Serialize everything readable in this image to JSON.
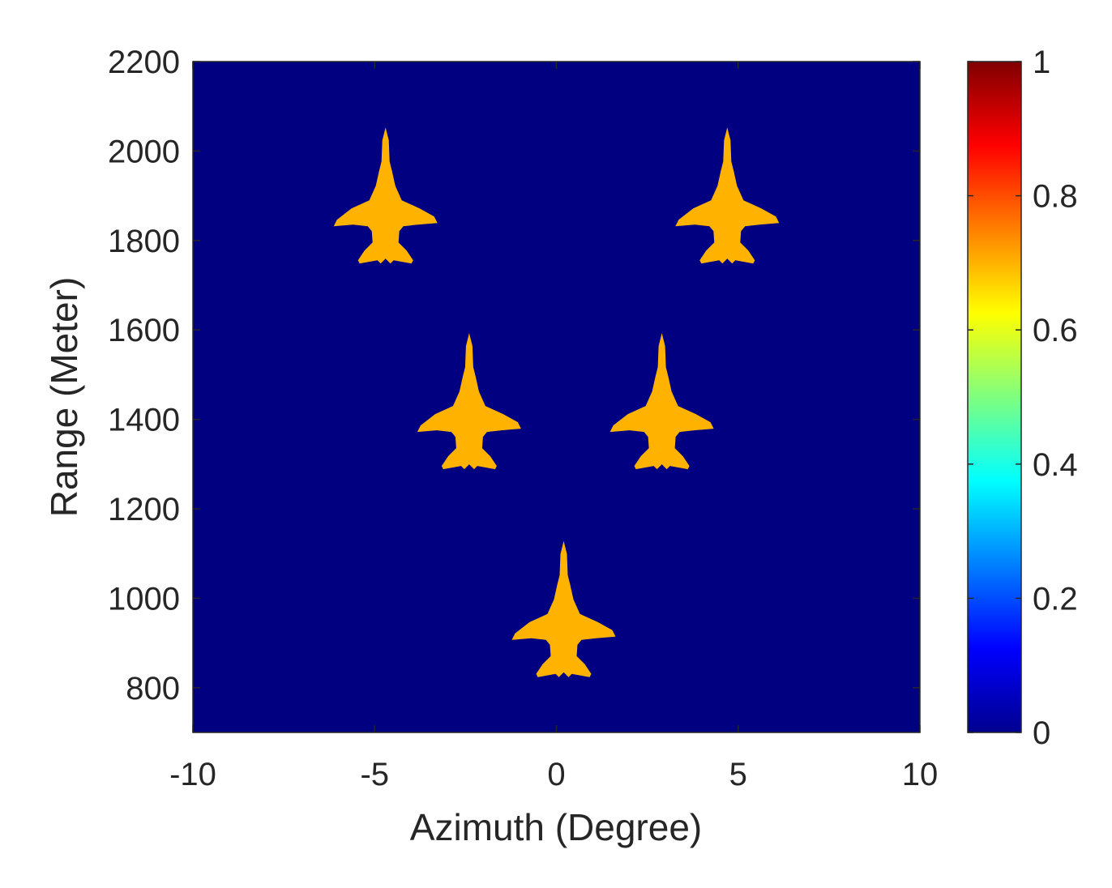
{
  "chart_data": {
    "type": "heatmap",
    "title": "",
    "xlabel": "Azimuth (Degree)",
    "ylabel": "Range (Meter)",
    "xlim": [
      -10,
      10
    ],
    "ylim": [
      700,
      2200
    ],
    "xticks": [
      -10,
      -5,
      0,
      5,
      10
    ],
    "xtick_labels": [
      "-10",
      "-5",
      "0",
      "5",
      "10"
    ],
    "yticks": [
      800,
      1000,
      1200,
      1400,
      1600,
      1800,
      2000,
      2200
    ],
    "ytick_labels": [
      "800",
      "1000",
      "1200",
      "1400",
      "1600",
      "1800",
      "2000",
      "2200"
    ],
    "background_value": 0,
    "targets": [
      {
        "azimuth": -4.7,
        "range": 1850,
        "intensity": 0.7
      },
      {
        "azimuth": 4.7,
        "range": 1850,
        "intensity": 0.7
      },
      {
        "azimuth": -2.4,
        "range": 1390,
        "intensity": 0.7
      },
      {
        "azimuth": 2.9,
        "range": 1390,
        "intensity": 0.7
      },
      {
        "azimuth": 0.2,
        "range": 925,
        "intensity": 0.7
      }
    ],
    "colorbar": {
      "colormap": "jet",
      "range": [
        0,
        1
      ],
      "ticks": [
        0,
        0.2,
        0.4,
        0.6,
        0.8,
        1
      ],
      "tick_labels": [
        "0",
        "0.2",
        "0.4",
        "0.6",
        "0.8",
        "1"
      ]
    },
    "grid": false
  },
  "colors": {
    "background_fill": "#000080",
    "target_fill": "#FFAA00",
    "axis": "#262626"
  }
}
